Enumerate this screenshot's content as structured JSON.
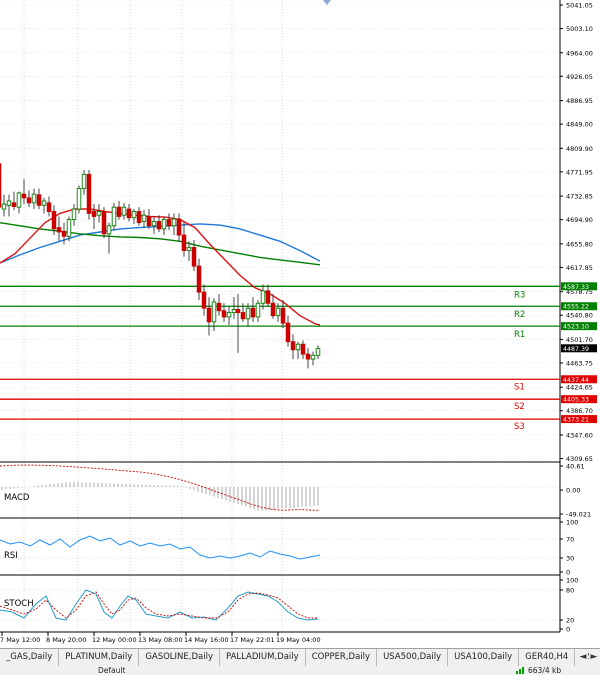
{
  "chart": {
    "price_axis_labels": [
      "5041.05",
      "5003.10",
      "4964.00",
      "4926.05",
      "4886.95",
      "4849.00",
      "4809.90",
      "4771.95",
      "4732.85",
      "4694.90",
      "4655.80",
      "4617.85",
      "4578.75",
      "4540.80",
      "4501.70",
      "4463.75",
      "4424.65",
      "4386.70",
      "4347.60",
      "4309.65"
    ],
    "current_price": "4487.39",
    "time_labels": [
      "7 May 12:00",
      "8 May 20:00",
      "12 May 00:00",
      "13 May 08:00",
      "14 May 16:00",
      "17 May 22:01",
      "19 May 04:00"
    ],
    "levels": {
      "R3": {
        "label": "R3",
        "price": "4587.33"
      },
      "R2": {
        "label": "R2",
        "price": "4555.22"
      },
      "R1": {
        "label": "R1",
        "price": "4523.10"
      },
      "S1": {
        "label": "S1",
        "price": "4437.44"
      },
      "S2": {
        "label": "S2",
        "price": "4405.33"
      },
      "S3": {
        "label": "S3",
        "price": "4373.21"
      }
    },
    "colors": {
      "resistance": "#008000",
      "support": "#e00000",
      "bull_candle": "#008000",
      "bear_candle": "#cc0000",
      "ma_fast": "#e01010",
      "ma_mid": "#008000",
      "ma_slow": "#1e78d8"
    }
  },
  "macd": {
    "label": "MACD",
    "axis": [
      "40.61",
      "0.00",
      "-49.021"
    ]
  },
  "rsi": {
    "label": "RSI",
    "axis": [
      "100",
      "70",
      "30",
      "0"
    ]
  },
  "stoch": {
    "label": "STOCH",
    "axis": [
      "100",
      "80",
      "20",
      "0"
    ]
  },
  "tabs": [
    "_GAS,Daily",
    "PLATINUM,Daily",
    "GASOLINE,Daily",
    "PALLADIUM,Daily",
    "COPPER,Daily",
    "USA500,Daily",
    "USA100,Daily",
    "GER40,H4",
    "USA"
  ],
  "tab_nav": {
    "left": "◄",
    "right": "►"
  },
  "status": {
    "profile": "Default",
    "traffic": "663/4 kb"
  }
}
